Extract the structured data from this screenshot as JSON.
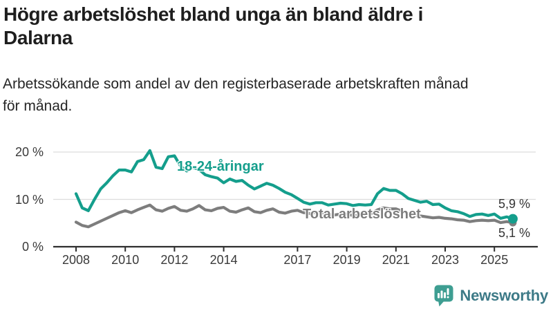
{
  "header": {
    "title_lines": [
      "Högre arbetslöshet bland unga än bland äldre i",
      "Dalarna"
    ],
    "subtitle_lines": [
      "Arbetssökande som andel av den registerbaserade arbetskraften månad",
      "för månad."
    ]
  },
  "chart_data": {
    "type": "line",
    "title": "Högre arbetslöshet bland unga än bland äldre i Dalarna",
    "subtitle": "Arbetssökande som andel av den registerbaserade arbetskraften månad för månad.",
    "unit": "%",
    "x_label_none": "",
    "grid": "horizontal-only",
    "grid_color": "#dcdcdc",
    "axis_color": "#2e2e2e",
    "xlim": [
      2008,
      2026.8
    ],
    "ylim": [
      0,
      21.5
    ],
    "x": [
      2008,
      2008.25,
      2008.5,
      2008.75,
      2009,
      2009.25,
      2009.5,
      2009.75,
      2010,
      2010.25,
      2010.5,
      2010.75,
      2011,
      2011.25,
      2011.5,
      2011.75,
      2012,
      2012.25,
      2012.5,
      2012.75,
      2013,
      2013.25,
      2013.5,
      2013.75,
      2014,
      2014.25,
      2014.5,
      2014.75,
      2015,
      2015.25,
      2015.5,
      2015.75,
      2016,
      2016.25,
      2016.5,
      2016.75,
      2017,
      2017.25,
      2017.5,
      2017.75,
      2018,
      2018.25,
      2018.5,
      2018.75,
      2019,
      2019.25,
      2019.5,
      2019.75,
      2020,
      2020.25,
      2020.5,
      2020.75,
      2021,
      2021.25,
      2021.5,
      2021.75,
      2022,
      2022.25,
      2022.5,
      2022.75,
      2023,
      2023.25,
      2023.5,
      2023.75,
      2024,
      2024.25,
      2024.5,
      2024.75,
      2025,
      2025.25,
      2025.5,
      2025.75
    ],
    "series": [
      {
        "name": "18-24-åringar",
        "color": "#149e8c",
        "end_label": "5,9 %",
        "end_value": 5.9,
        "values": [
          11.2,
          8.2,
          7.6,
          10.0,
          12.2,
          13.5,
          15.0,
          16.2,
          16.2,
          15.8,
          18.0,
          18.4,
          20.3,
          16.8,
          16.5,
          19.0,
          19.2,
          17.0,
          16.0,
          16.8,
          16.3,
          15.2,
          14.8,
          14.5,
          13.5,
          14.3,
          13.8,
          14.0,
          13.0,
          12.2,
          12.8,
          13.4,
          13.0,
          12.3,
          11.5,
          11.0,
          10.2,
          9.4,
          9.0,
          9.3,
          9.3,
          8.8,
          9.0,
          9.2,
          9.1,
          8.7,
          8.9,
          8.8,
          8.9,
          11.2,
          12.3,
          11.9,
          11.9,
          11.2,
          10.2,
          9.8,
          9.4,
          9.6,
          8.9,
          9.0,
          8.2,
          7.6,
          7.4,
          7.0,
          6.4,
          6.8,
          6.9,
          6.6,
          6.9,
          6.0,
          6.3,
          5.9
        ]
      },
      {
        "name": "Total arbetslöshet",
        "color": "#7d7d7d",
        "end_label": "5,1 %",
        "end_value": 5.1,
        "values": [
          5.2,
          4.5,
          4.2,
          4.8,
          5.4,
          6.0,
          6.6,
          7.2,
          7.6,
          7.2,
          7.8,
          8.3,
          8.8,
          7.8,
          7.5,
          8.1,
          8.5,
          7.7,
          7.5,
          8.0,
          8.7,
          7.8,
          7.6,
          8.1,
          8.3,
          7.5,
          7.3,
          7.8,
          8.2,
          7.4,
          7.2,
          7.7,
          8.0,
          7.3,
          7.1,
          7.5,
          7.7,
          7.2,
          7.0,
          7.3,
          7.2,
          6.8,
          6.7,
          6.9,
          6.9,
          6.6,
          6.6,
          6.8,
          7.0,
          7.8,
          8.2,
          8.0,
          8.0,
          7.5,
          7.0,
          6.7,
          6.5,
          6.3,
          6.1,
          6.2,
          6.0,
          5.9,
          5.7,
          5.6,
          5.3,
          5.5,
          5.6,
          5.5,
          5.6,
          5.1,
          5.3,
          5.1
        ]
      }
    ],
    "x_ticks": [
      "2008",
      "2010",
      "2012",
      "2014",
      "2017",
      "2019",
      "2021",
      "2023",
      "2025"
    ],
    "y_ticks": [
      {
        "value": 0,
        "label": "0 %"
      },
      {
        "value": 10,
        "label": "10 %"
      },
      {
        "value": 20,
        "label": "20 %"
      }
    ],
    "legend_position": "inline-labels"
  },
  "footer": {
    "brand": "Newsworthy",
    "brand_teal": "#3e9e92"
  }
}
